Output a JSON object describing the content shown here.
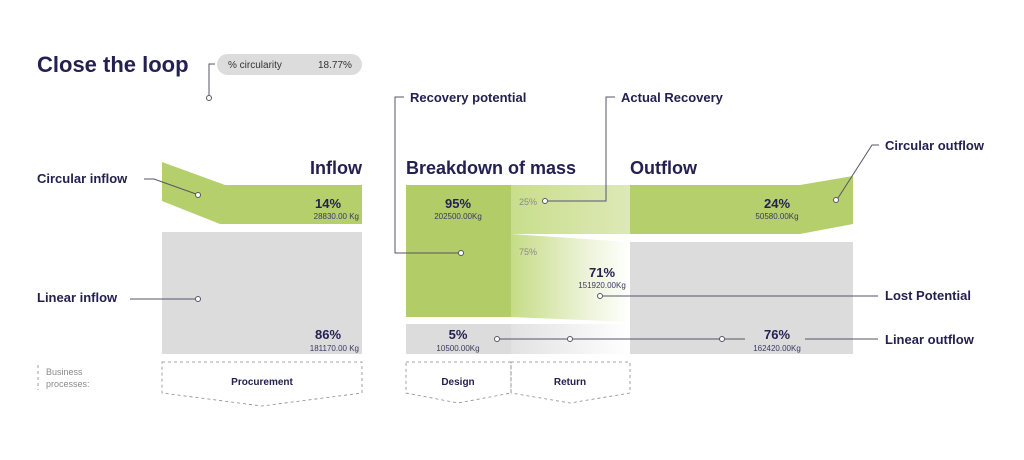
{
  "title": "Close the loop",
  "circularity": {
    "label": "% circularity",
    "value": "18.77%"
  },
  "sections": {
    "inflow": "Inflow",
    "breakdown": "Breakdown of mass",
    "outflow": "Outflow"
  },
  "labels": {
    "circular_inflow": "Circular inflow",
    "linear_inflow": "Linear inflow",
    "recovery_potential": "Recovery potential",
    "actual_recovery": "Actual Recovery",
    "circular_outflow": "Circular outflow",
    "lost_potential": "Lost Potential",
    "linear_outflow": "Linear outflow"
  },
  "flows": {
    "circular_inflow": {
      "pct": "14%",
      "mass": "28830.00 Kg"
    },
    "linear_inflow": {
      "pct": "86%",
      "mass": "181170.00 Kg"
    },
    "design_recoverable": {
      "pct": "95%",
      "mass": "202500.00Kg"
    },
    "design_linear": {
      "pct": "5%",
      "mass": "10500.00Kg"
    },
    "return_recovered": {
      "pct": "25%"
    },
    "return_lost": {
      "pct": "75%"
    },
    "lost": {
      "pct": "71%",
      "mass": "151920.00Kg"
    },
    "circular_outflow": {
      "pct": "24%",
      "mass": "50580.00Kg"
    },
    "linear_outflow": {
      "pct": "76%",
      "mass": "162420.00Kg"
    }
  },
  "business_processes": {
    "label_line1": "Business",
    "label_line2": "processes:",
    "items": [
      "Procurement",
      "Design",
      "Return"
    ]
  },
  "colors": {
    "green": "#b5cf6c",
    "light_green": "#d6e6a8",
    "grey": "#dcdcdc",
    "navy": "#24204f"
  }
}
